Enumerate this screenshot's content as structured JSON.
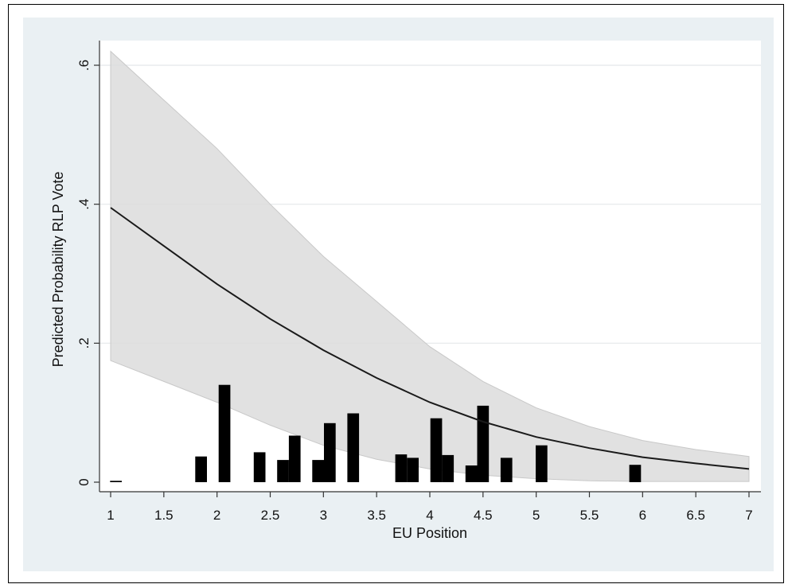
{
  "chart_data": {
    "type": "line",
    "title": "",
    "xlabel": "EU Position",
    "ylabel": "Predicted Probability RLP Vote",
    "xlim": [
      1,
      7
    ],
    "ylim": [
      0,
      0.6
    ],
    "x_ticks": [
      1,
      1.5,
      2,
      2.5,
      3,
      3.5,
      4,
      4.5,
      5,
      5.5,
      6,
      6.5,
      7
    ],
    "x_tick_labels": [
      "1",
      "1.5",
      "2",
      "2.5",
      "3",
      "3.5",
      "4",
      "4.5",
      "5",
      "5.5",
      "6",
      "6.5",
      "7"
    ],
    "y_ticks": [
      0,
      0.2,
      0.4,
      0.6
    ],
    "y_tick_labels": [
      "0",
      ".2",
      ".4",
      ".6"
    ],
    "grid": "horizontal",
    "series": [
      {
        "kind": "line",
        "x": [
          1,
          1.5,
          2,
          2.5,
          3,
          3.5,
          4,
          4.5,
          5,
          5.5,
          6,
          6.5,
          7
        ],
        "values": [
          0.395,
          0.34,
          0.285,
          0.235,
          0.19,
          0.15,
          0.115,
          0.087,
          0.065,
          0.049,
          0.036,
          0.027,
          0.019
        ]
      },
      {
        "kind": "band",
        "x": [
          1,
          1.5,
          2,
          2.5,
          3,
          3.5,
          4,
          4.5,
          5,
          5.5,
          6,
          6.5,
          7
        ],
        "upper": [
          0.62,
          0.55,
          0.48,
          0.4,
          0.325,
          0.26,
          0.195,
          0.145,
          0.107,
          0.08,
          0.06,
          0.047,
          0.037
        ],
        "lower": [
          0.175,
          0.145,
          0.115,
          0.082,
          0.053,
          0.033,
          0.019,
          0.01,
          0.005,
          0.002,
          0.001,
          0.001,
          0.001
        ]
      },
      {
        "kind": "histogram",
        "bin_width": 0.11,
        "x": [
          1.05,
          1.85,
          2.07,
          2.4,
          2.62,
          2.73,
          2.95,
          3.06,
          3.28,
          3.73,
          3.84,
          4.06,
          4.17,
          4.39,
          4.5,
          4.72,
          5.05,
          5.93
        ],
        "values": [
          0.002,
          0.037,
          0.14,
          0.043,
          0.032,
          0.067,
          0.032,
          0.085,
          0.099,
          0.04,
          0.035,
          0.092,
          0.039,
          0.024,
          0.11,
          0.035,
          0.053,
          0.025
        ]
      }
    ]
  }
}
